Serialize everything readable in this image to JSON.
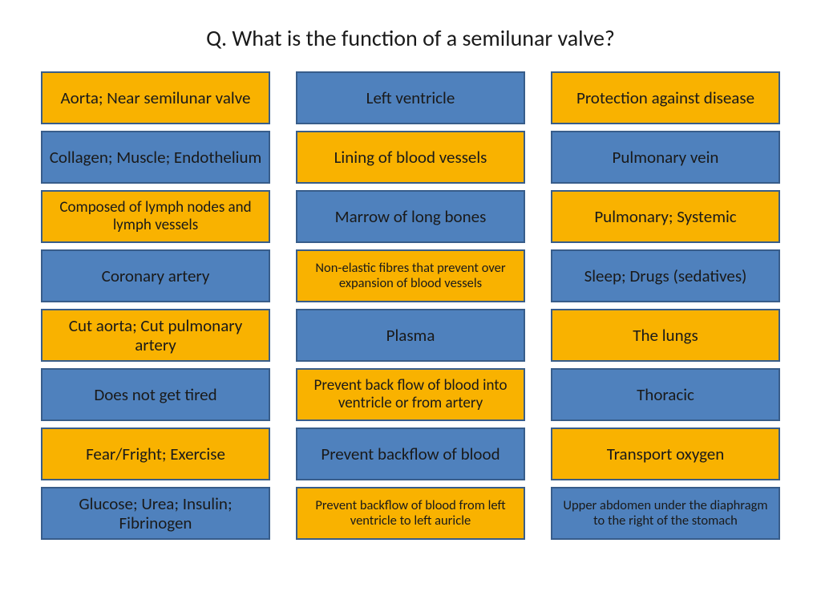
{
  "title": "Q. What is the function of a semilunar valve?",
  "colors": {
    "yellow_bg": "#f9b200",
    "blue_bg": "#4f81bd",
    "border": "#385d8a",
    "text": "#1a1a1a",
    "page_bg": "#ffffff"
  },
  "columns": [
    {
      "cards": [
        {
          "text": "Aorta; Near semilunar valve",
          "color": "yellow",
          "size": "lg"
        },
        {
          "text": "Collagen; Muscle; Endothelium",
          "color": "blue",
          "size": "lg"
        },
        {
          "text": "Composed of lymph nodes and lymph vessels",
          "color": "yellow",
          "size": "md"
        },
        {
          "text": "Coronary artery",
          "color": "blue",
          "size": "lg"
        },
        {
          "text": "Cut aorta; Cut pulmonary artery",
          "color": "yellow",
          "size": "lg"
        },
        {
          "text": "Does not get tired",
          "color": "blue",
          "size": "lg"
        },
        {
          "text": "Fear/Fright; Exercise",
          "color": "yellow",
          "size": "lg"
        },
        {
          "text": "Glucose; Urea; Insulin; Fibrinogen",
          "color": "blue",
          "size": "lg"
        }
      ]
    },
    {
      "cards": [
        {
          "text": "Left ventricle",
          "color": "blue",
          "size": "lg"
        },
        {
          "text": "Lining of blood vessels",
          "color": "yellow",
          "size": "lg"
        },
        {
          "text": "Marrow of long bones",
          "color": "blue",
          "size": "lg"
        },
        {
          "text": "Non-elastic fibres that prevent over expansion of blood vessels",
          "color": "yellow",
          "size": "sm"
        },
        {
          "text": "Plasma",
          "color": "blue",
          "size": "lg"
        },
        {
          "text": "Prevent back flow of blood into ventricle or from artery",
          "color": "yellow",
          "size": "md"
        },
        {
          "text": "Prevent backflow of blood",
          "color": "blue",
          "size": "lg"
        },
        {
          "text": "Prevent backflow of blood from left ventricle to left auricle",
          "color": "yellow",
          "size": "sm"
        }
      ]
    },
    {
      "cards": [
        {
          "text": "Protection against disease",
          "color": "yellow",
          "size": "lg"
        },
        {
          "text": "Pulmonary vein",
          "color": "blue",
          "size": "lg"
        },
        {
          "text": "Pulmonary; Systemic",
          "color": "yellow",
          "size": "lg"
        },
        {
          "text": "Sleep; Drugs (sedatives)",
          "color": "blue",
          "size": "lg"
        },
        {
          "text": "The lungs",
          "color": "yellow",
          "size": "lg"
        },
        {
          "text": "Thoracic",
          "color": "blue",
          "size": "lg"
        },
        {
          "text": "Transport oxygen",
          "color": "yellow",
          "size": "lg"
        },
        {
          "text": "Upper abdomen under the diaphragm to the right of the stomach",
          "color": "blue",
          "size": "sm"
        }
      ]
    }
  ]
}
